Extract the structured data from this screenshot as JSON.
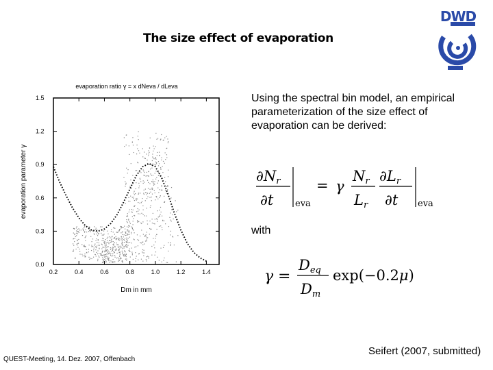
{
  "slide": {
    "title": "The size effect of evaporation",
    "description": "Using the spectral bin model, an empirical parameterization of the size effect of evaporation can be derived:",
    "with_label": "with",
    "footer_left": "QUEST-Meeting, 14. Dez. 2007, Offenbach",
    "footer_right": "Seifert (2007, submitted)"
  },
  "logo": {
    "text": "DWD",
    "icon": "dwd-swirl-logo",
    "color": "#2a4aa8"
  },
  "equations": {
    "eq1": "∂N_r/∂t |eva = γ (N_r/L_r) ∂L_r/∂t |eva",
    "eq2": "γ = (D_eq/D_m) exp(−0.2μ)",
    "eva_subscript": "eva"
  },
  "chart_data": {
    "type": "scatter",
    "title": "evaporation ratio γ = x dNeva / dLeva",
    "xlabel": "Dm in mm",
    "ylabel": "evaporation parameter γ",
    "xlim": [
      0.2,
      1.5
    ],
    "ylim": [
      0.0,
      1.5
    ],
    "x_ticks": [
      "0.2",
      "0.4",
      "0.6",
      "0.8",
      "1.0",
      "1.2",
      "1.4"
    ],
    "y_ticks": [
      "0.0",
      "0.3",
      "0.6",
      "0.9",
      "1.2",
      "1.5"
    ],
    "grid": false,
    "series": [
      {
        "kind": "fit",
        "style": "dotted-black",
        "x": [
          0.2,
          0.25,
          0.3,
          0.35,
          0.4,
          0.45,
          0.5,
          0.55,
          0.6,
          0.65,
          0.7,
          0.75,
          0.8,
          0.85,
          0.9,
          0.95,
          1.0,
          1.05,
          1.1,
          1.15,
          1.2,
          1.25,
          1.3,
          1.35,
          1.4
        ],
        "y": [
          0.88,
          0.74,
          0.62,
          0.51,
          0.42,
          0.35,
          0.31,
          0.3,
          0.32,
          0.37,
          0.45,
          0.56,
          0.68,
          0.8,
          0.88,
          0.91,
          0.88,
          0.78,
          0.63,
          0.46,
          0.31,
          0.19,
          0.11,
          0.06,
          0.03
        ]
      }
    ],
    "scatter_color": "#888888"
  }
}
